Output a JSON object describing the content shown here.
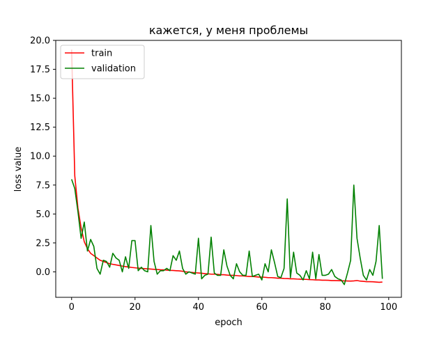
{
  "chart_data": {
    "type": "line",
    "title": "кажется, у меня проблемы",
    "xlabel": "epoch",
    "ylabel": "loss value",
    "xlim": [
      -5,
      104
    ],
    "ylim": [
      -2.2,
      20.0
    ],
    "xticks": [
      0,
      20,
      40,
      60,
      80,
      100
    ],
    "xtick_labels": [
      "0",
      "20",
      "40",
      "60",
      "80",
      "100"
    ],
    "yticks": [
      0.0,
      2.5,
      5.0,
      7.5,
      10.0,
      12.5,
      15.0,
      17.5,
      20.0
    ],
    "ytick_labels": [
      "0.0",
      "2.5",
      "5.0",
      "7.5",
      "10.0",
      "12.5",
      "15.0",
      "17.5",
      "20.0"
    ],
    "grid": false,
    "legend_position": "top-left",
    "series": [
      {
        "name": "train",
        "color": "#ff0000",
        "x": [
          0,
          1,
          2,
          3,
          4,
          5,
          6,
          7,
          8,
          9,
          10,
          11,
          12,
          13,
          14,
          15,
          16,
          17,
          18,
          19,
          20,
          21,
          22,
          23,
          24,
          25,
          26,
          27,
          28,
          29,
          30,
          31,
          32,
          33,
          34,
          35,
          36,
          37,
          38,
          39,
          40,
          41,
          42,
          43,
          44,
          45,
          46,
          47,
          48,
          49,
          50,
          51,
          52,
          53,
          54,
          55,
          56,
          57,
          58,
          59,
          60,
          61,
          62,
          63,
          64,
          65,
          66,
          67,
          68,
          69,
          70,
          71,
          72,
          73,
          74,
          75,
          76,
          77,
          78,
          79,
          80,
          81,
          82,
          83,
          84,
          85,
          86,
          87,
          88,
          89,
          90,
          91,
          92,
          93,
          94,
          95,
          96,
          97,
          98
        ],
        "values": [
          19.2,
          8.3,
          5.5,
          3.8,
          2.6,
          2.0,
          1.6,
          1.4,
          1.2,
          1.0,
          0.9,
          0.8,
          0.7,
          0.65,
          0.6,
          0.55,
          0.5,
          0.45,
          0.42,
          0.38,
          0.35,
          0.32,
          0.3,
          0.28,
          0.26,
          0.24,
          0.22,
          0.2,
          0.18,
          0.17,
          0.15,
          0.13,
          0.12,
          0.1,
          0.08,
          0.05,
          0.0,
          -0.02,
          -0.05,
          -0.08,
          -0.1,
          -0.12,
          -0.15,
          -0.17,
          -0.2,
          -0.2,
          -0.22,
          -0.25,
          -0.25,
          -0.28,
          -0.3,
          -0.3,
          -0.32,
          -0.35,
          -0.35,
          -0.38,
          -0.4,
          -0.4,
          -0.42,
          -0.45,
          -0.45,
          -0.47,
          -0.5,
          -0.5,
          -0.52,
          -0.55,
          -0.55,
          -0.57,
          -0.58,
          -0.6,
          -0.6,
          -0.62,
          -0.63,
          -0.65,
          -0.65,
          -0.67,
          -0.68,
          -0.7,
          -0.7,
          -0.72,
          -0.72,
          -0.73,
          -0.75,
          -0.75,
          -0.76,
          -0.77,
          -0.78,
          -0.79,
          -0.8,
          -0.78,
          -0.75,
          -0.8,
          -0.82,
          -0.85,
          -0.85,
          -0.86,
          -0.88,
          -0.9,
          -0.88
        ]
      },
      {
        "name": "validation",
        "color": "#008000",
        "x": [
          0,
          1,
          2,
          3,
          4,
          5,
          6,
          7,
          8,
          9,
          10,
          11,
          12,
          13,
          14,
          15,
          16,
          17,
          18,
          19,
          20,
          21,
          22,
          23,
          24,
          25,
          26,
          27,
          28,
          29,
          30,
          31,
          32,
          33,
          34,
          35,
          36,
          37,
          38,
          39,
          40,
          41,
          42,
          43,
          44,
          45,
          46,
          47,
          48,
          49,
          50,
          51,
          52,
          53,
          54,
          55,
          56,
          57,
          58,
          59,
          60,
          61,
          62,
          63,
          64,
          65,
          66,
          67,
          68,
          69,
          70,
          71,
          72,
          73,
          74,
          75,
          76,
          77,
          78,
          79,
          80,
          81,
          82,
          83,
          84,
          85,
          86,
          87,
          88,
          89,
          90,
          91,
          92,
          93,
          94,
          95,
          96,
          97,
          98
        ],
        "values": [
          8.0,
          7.2,
          5.2,
          2.9,
          4.3,
          1.8,
          2.8,
          2.2,
          0.3,
          -0.2,
          1.0,
          0.9,
          0.4,
          1.6,
          1.2,
          1.0,
          0.0,
          1.3,
          0.3,
          2.7,
          2.7,
          0.1,
          0.4,
          0.1,
          0.0,
          4.0,
          0.9,
          -0.2,
          0.1,
          0.1,
          0.3,
          0.1,
          1.4,
          1.0,
          1.8,
          0.3,
          -0.2,
          0.0,
          -0.1,
          -0.2,
          2.9,
          -0.6,
          -0.3,
          -0.2,
          3.0,
          -0.1,
          -0.3,
          -0.3,
          1.9,
          0.5,
          -0.3,
          -0.6,
          0.7,
          0.0,
          -0.3,
          -0.3,
          1.8,
          -0.4,
          -0.3,
          -0.2,
          -0.7,
          0.7,
          0.0,
          1.9,
          0.8,
          -0.4,
          -0.5,
          0.3,
          6.3,
          -0.5,
          1.7,
          -0.1,
          -0.3,
          -0.7,
          0.1,
          -0.6,
          1.7,
          -0.6,
          1.5,
          -0.3,
          -0.3,
          -0.2,
          0.2,
          -0.4,
          -0.6,
          -0.7,
          -1.1,
          -0.1,
          1.0,
          7.5,
          2.9,
          1.2,
          -0.3,
          -0.7,
          0.2,
          -0.3,
          0.9,
          4.0,
          -0.6
        ]
      }
    ]
  }
}
